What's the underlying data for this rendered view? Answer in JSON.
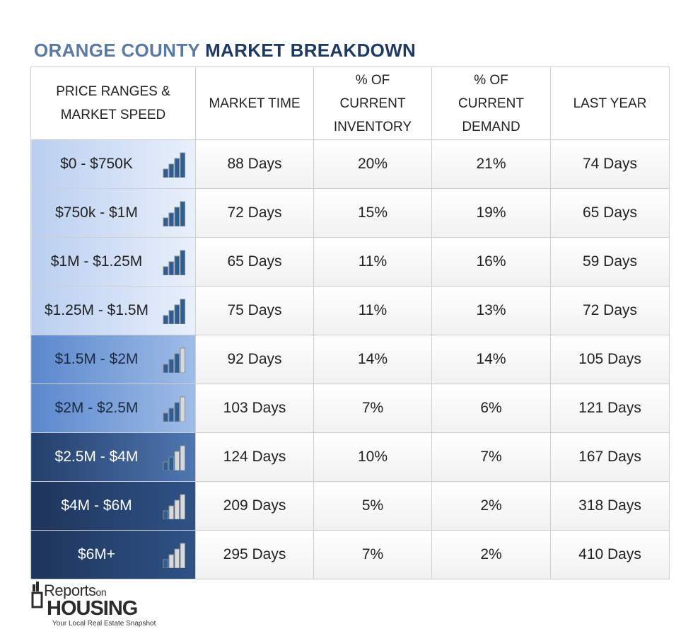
{
  "title": {
    "part1": "ORANGE COUNTY",
    "part2": "MARKET BREAKDOWN"
  },
  "colors": {
    "title_light": "#5a7aa3",
    "title_dark": "#1e3a63",
    "bar_lit": "#2f5d92",
    "bar_off": "#d9d9d9",
    "bar_outline": "#8a8a8a"
  },
  "chart_data": {
    "type": "table",
    "title": "ORANGE COUNTY MARKET BREAKDOWN",
    "columns": [
      [
        "PRICE RANGES &",
        "MARKET SPEED"
      ],
      [
        "MARKET TIME"
      ],
      [
        "% OF",
        "CURRENT",
        "INVENTORY"
      ],
      [
        "% OF",
        "CURRENT",
        "DEMAND"
      ],
      [
        "LAST YEAR"
      ]
    ],
    "rows": [
      {
        "range": "$0 - $750K",
        "speed_level": 4,
        "market_time": "88 Days",
        "inventory": "20%",
        "demand": "21%",
        "last_year": "74 Days",
        "row_color": [
          "#b9cff0",
          "#e9f0fb"
        ],
        "text_color": "#222222"
      },
      {
        "range": "$750k - $1M",
        "speed_level": 4,
        "market_time": "72 Days",
        "inventory": "15%",
        "demand": "19%",
        "last_year": "65 Days",
        "row_color": [
          "#b9cff0",
          "#e9f0fb"
        ],
        "text_color": "#222222"
      },
      {
        "range": "$1M - $1.25M",
        "speed_level": 4,
        "market_time": "65 Days",
        "inventory": "11%",
        "demand": "16%",
        "last_year": "59 Days",
        "row_color": [
          "#b9cff0",
          "#e9f0fb"
        ],
        "text_color": "#222222"
      },
      {
        "range": "$1.25M - $1.5M",
        "speed_level": 4,
        "market_time": "75 Days",
        "inventory": "11%",
        "demand": "13%",
        "last_year": "72 Days",
        "row_color": [
          "#b9cff0",
          "#e9f0fb"
        ],
        "text_color": "#222222"
      },
      {
        "range": "$1.5M - $2M",
        "speed_level": 3,
        "market_time": "92 Days",
        "inventory": "14%",
        "demand": "14%",
        "last_year": "105 Days",
        "row_color": [
          "#5b88cc",
          "#9fbde8"
        ],
        "text_color": "#1c2a40"
      },
      {
        "range": "$2M - $2.5M",
        "speed_level": 3,
        "market_time": "103 Days",
        "inventory": "7%",
        "demand": "6%",
        "last_year": "121 Days",
        "row_color": [
          "#5b88cc",
          "#9fbde8"
        ],
        "text_color": "#1c2a40"
      },
      {
        "range": "$2.5M - $4M",
        "speed_level": 2,
        "market_time": "124 Days",
        "inventory": "10%",
        "demand": "7%",
        "last_year": "167 Days",
        "row_color": [
          "#243f6b",
          "#4f77b1"
        ],
        "text_color": "#ffffff"
      },
      {
        "range": "$4M - $6M",
        "speed_level": 1,
        "market_time": "209 Days",
        "inventory": "5%",
        "demand": "2%",
        "last_year": "318 Days",
        "row_color": [
          "#1e355b",
          "#2f5287"
        ],
        "text_color": "#ffffff"
      },
      {
        "range": "$6M+",
        "speed_level": 1,
        "market_time": "295 Days",
        "inventory": "7%",
        "demand": "2%",
        "last_year": "410 Days",
        "row_color": [
          "#1e355b",
          "#2f5287"
        ],
        "text_color": "#ffffff"
      }
    ]
  },
  "logo": {
    "word1": "Reports",
    "word2": "on",
    "word3": "HOUSING",
    "tagline": "Your Local Real Estate Snapshot"
  }
}
